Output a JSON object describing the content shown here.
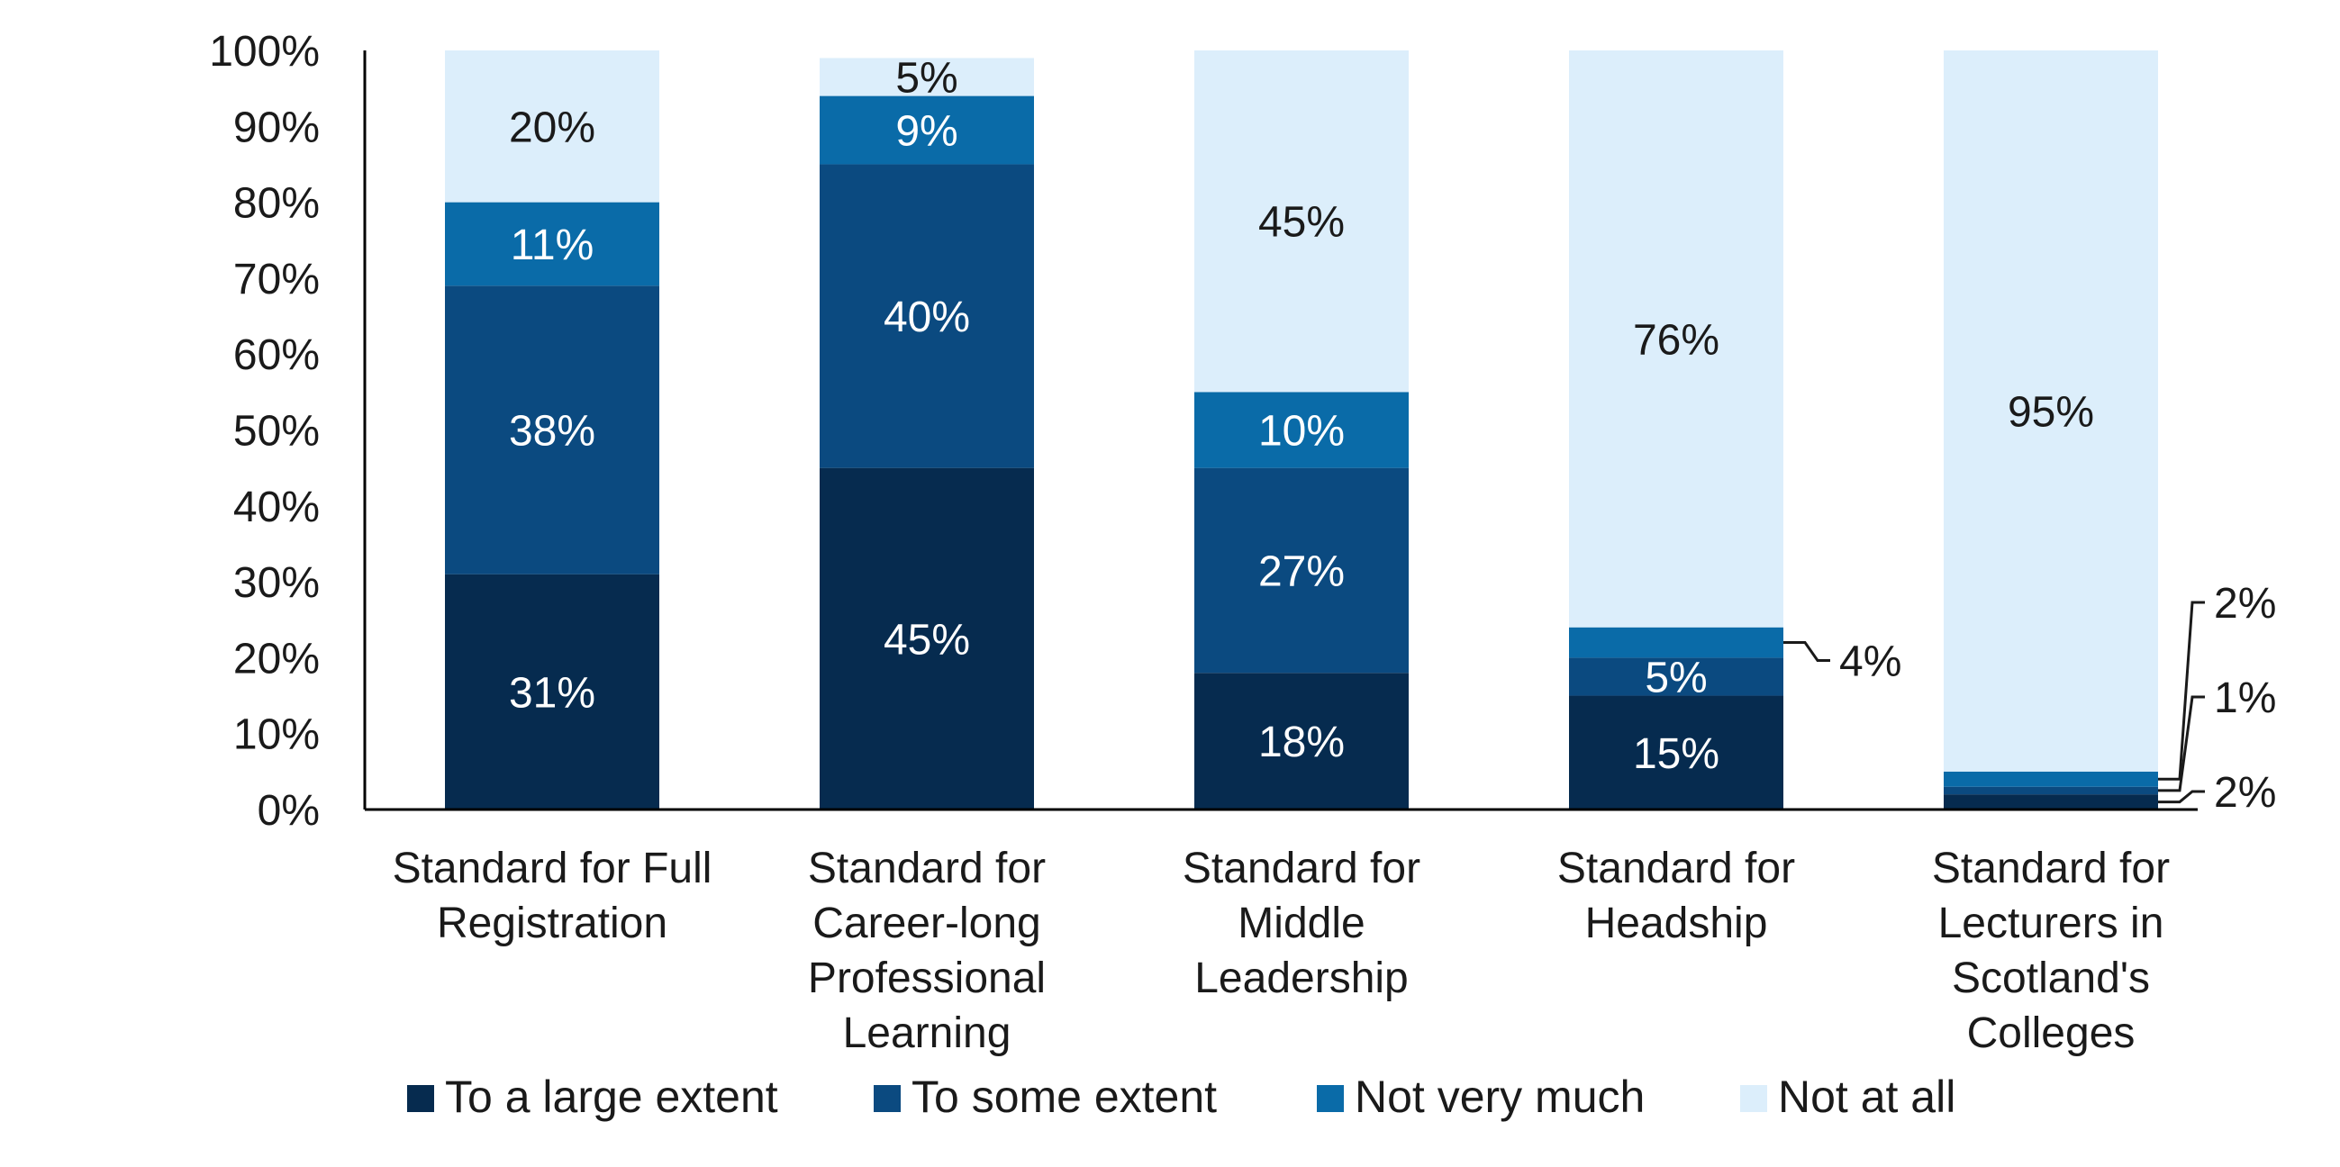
{
  "chart_data": {
    "type": "bar",
    "stacked": true,
    "categories": [
      [
        "Standard for Full",
        "Registration"
      ],
      [
        "Standard for",
        "Career-long",
        "Professional",
        "Learning"
      ],
      [
        "Standard for",
        "Middle",
        "Leadership"
      ],
      [
        "Standard for",
        "Headship"
      ],
      [
        "Standard for",
        "Lecturers in",
        "Scotland's",
        "Colleges"
      ]
    ],
    "series": [
      {
        "name": "To a large extent",
        "color": "#062B4F",
        "values": [
          31,
          45,
          18,
          15,
          2
        ],
        "labels": [
          "31%",
          "45%",
          "18%",
          "15%",
          "2%"
        ]
      },
      {
        "name": "To some extent",
        "color": "#0B4A80",
        "values": [
          38,
          40,
          27,
          5,
          1
        ],
        "labels": [
          "38%",
          "40%",
          "27%",
          "5%",
          "1%"
        ]
      },
      {
        "name": "Not very much",
        "color": "#0A6BA8",
        "values": [
          11,
          9,
          10,
          4,
          2
        ],
        "labels": [
          "11%",
          "9%",
          "10%",
          "4%",
          "2%"
        ]
      },
      {
        "name": "Not at all",
        "color": "#DCEEFB",
        "values": [
          20,
          5,
          45,
          76,
          95
        ],
        "labels": [
          "20%",
          "5%",
          "45%",
          "76%",
          "95%"
        ]
      }
    ],
    "y_ticks": [
      "0%",
      "10%",
      "20%",
      "30%",
      "40%",
      "50%",
      "60%",
      "70%",
      "80%",
      "90%",
      "100%"
    ],
    "ylim": [
      0,
      100
    ],
    "legend_position": "bottom",
    "grid": false
  }
}
